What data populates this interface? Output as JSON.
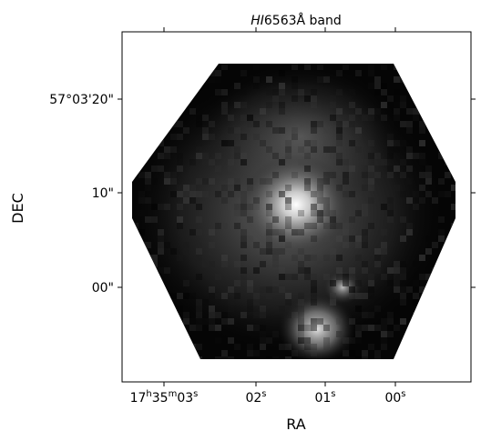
{
  "figure": {
    "title_prefix": "HI",
    "title_rest": "6563Å band",
    "colormap": "gray",
    "background_color": "#000000"
  },
  "axes": {
    "xlabel": "RA",
    "ylabel": "DEC",
    "x_ticks": [
      {
        "h": "17",
        "m": "35",
        "s": "03"
      },
      {
        "s": "02"
      },
      {
        "s": "01"
      },
      {
        "s": "00"
      }
    ],
    "y_ticks": [
      "57°03'20\"",
      "10\"",
      "00\""
    ]
  },
  "image": {
    "shape": "hexagon",
    "sources": [
      {
        "name": "bright-core",
        "level": 1.0
      },
      {
        "name": "southern-knot",
        "level": 0.75
      },
      {
        "name": "small-knot",
        "level": 0.55
      }
    ]
  }
}
